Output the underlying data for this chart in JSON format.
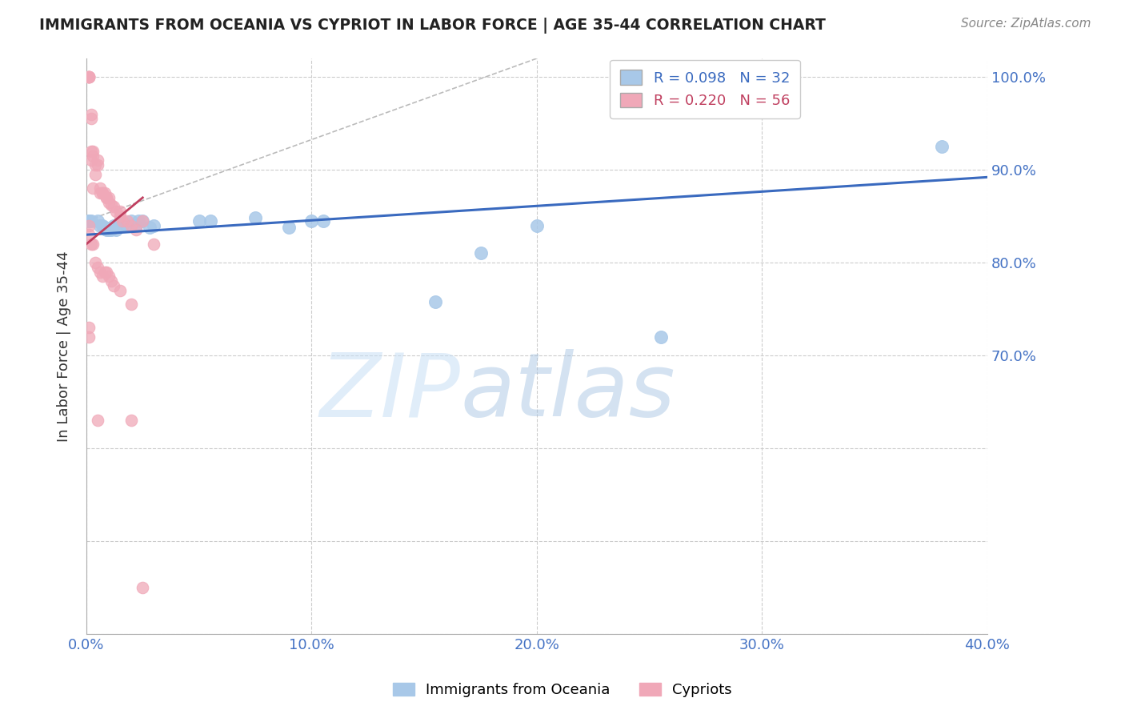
{
  "title": "IMMIGRANTS FROM OCEANIA VS CYPRIOT IN LABOR FORCE | AGE 35-44 CORRELATION CHART",
  "source": "Source: ZipAtlas.com",
  "ylabel": "In Labor Force | Age 35-44",
  "watermark_zip": "ZIP",
  "watermark_atlas": "atlas",
  "xlim": [
    0.0,
    0.4
  ],
  "ylim": [
    0.4,
    1.02
  ],
  "legend_R1": "R = 0.098",
  "legend_N1": "N = 32",
  "legend_R2": "R = 0.220",
  "legend_N2": "N = 56",
  "blue_color": "#a8c8e8",
  "pink_color": "#f0a8b8",
  "blue_line_color": "#3a6abf",
  "pink_line_color": "#c04060",
  "axis_color": "#4472c4",
  "grid_color": "#cccccc",
  "title_color": "#222222",
  "blue_scatter_x": [
    0.001,
    0.001,
    0.002,
    0.005,
    0.006,
    0.007,
    0.008,
    0.009,
    0.01,
    0.011,
    0.012,
    0.013,
    0.015,
    0.016,
    0.018,
    0.02,
    0.022,
    0.023,
    0.025,
    0.028,
    0.03,
    0.05,
    0.055,
    0.075,
    0.09,
    0.1,
    0.105,
    0.155,
    0.175,
    0.2,
    0.255,
    0.38
  ],
  "blue_scatter_y": [
    0.845,
    0.845,
    0.845,
    0.845,
    0.84,
    0.84,
    0.838,
    0.835,
    0.835,
    0.835,
    0.84,
    0.835,
    0.845,
    0.84,
    0.84,
    0.845,
    0.84,
    0.845,
    0.845,
    0.838,
    0.84,
    0.845,
    0.845,
    0.848,
    0.838,
    0.845,
    0.845,
    0.758,
    0.81,
    0.84,
    0.72,
    0.925
  ],
  "pink_scatter_x": [
    0.001,
    0.001,
    0.001,
    0.001,
    0.001,
    0.002,
    0.002,
    0.002,
    0.002,
    0.003,
    0.003,
    0.003,
    0.004,
    0.004,
    0.005,
    0.005,
    0.006,
    0.006,
    0.007,
    0.007,
    0.008,
    0.009,
    0.009,
    0.01,
    0.01,
    0.011,
    0.012,
    0.013,
    0.015,
    0.015,
    0.016,
    0.018,
    0.02,
    0.022,
    0.025,
    0.03,
    0.001,
    0.001,
    0.002,
    0.003,
    0.004,
    0.005,
    0.006,
    0.007,
    0.008,
    0.009,
    0.01,
    0.011,
    0.012,
    0.015,
    0.02,
    0.001,
    0.001,
    0.005,
    0.02,
    0.025
  ],
  "pink_scatter_y": [
    1.0,
    1.0,
    1.0,
    1.0,
    1.0,
    0.96,
    0.955,
    0.92,
    0.91,
    0.915,
    0.92,
    0.88,
    0.895,
    0.905,
    0.91,
    0.905,
    0.88,
    0.875,
    0.875,
    0.875,
    0.875,
    0.87,
    0.87,
    0.865,
    0.87,
    0.862,
    0.86,
    0.855,
    0.85,
    0.855,
    0.845,
    0.845,
    0.84,
    0.835,
    0.845,
    0.82,
    0.84,
    0.83,
    0.82,
    0.82,
    0.8,
    0.795,
    0.79,
    0.785,
    0.79,
    0.79,
    0.785,
    0.78,
    0.775,
    0.77,
    0.755,
    0.73,
    0.72,
    0.63,
    0.63,
    0.45
  ],
  "blue_line_x0": 0.0,
  "blue_line_x1": 0.4,
  "blue_line_y0": 0.83,
  "blue_line_y1": 0.892,
  "pink_line_x0": 0.0,
  "pink_line_x1": 0.025,
  "pink_line_y0": 0.82,
  "pink_line_y1": 0.87,
  "diag_line_x": [
    0.0,
    0.2
  ],
  "diag_line_y": [
    0.845,
    1.02
  ]
}
